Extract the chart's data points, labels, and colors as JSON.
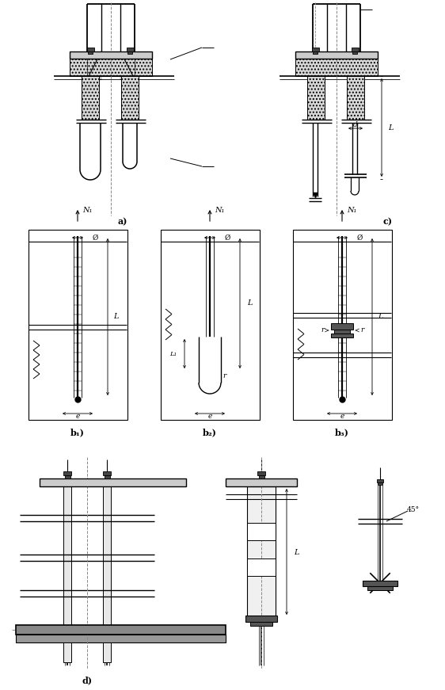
{
  "bg_color": "#ffffff",
  "figsize": [
    5.62,
    8.71
  ],
  "dpi": 100,
  "labels": {
    "a": "a)",
    "b1": "b₁)",
    "b2": "b₂)",
    "b3": "b₃)",
    "c": "c)",
    "d": "d)",
    "N1": "N₁",
    "L": "L",
    "L1": "L₁",
    "d_dim": "d",
    "e": "e",
    "phi": "Ø",
    "deg45": "45°",
    "r": "r"
  }
}
